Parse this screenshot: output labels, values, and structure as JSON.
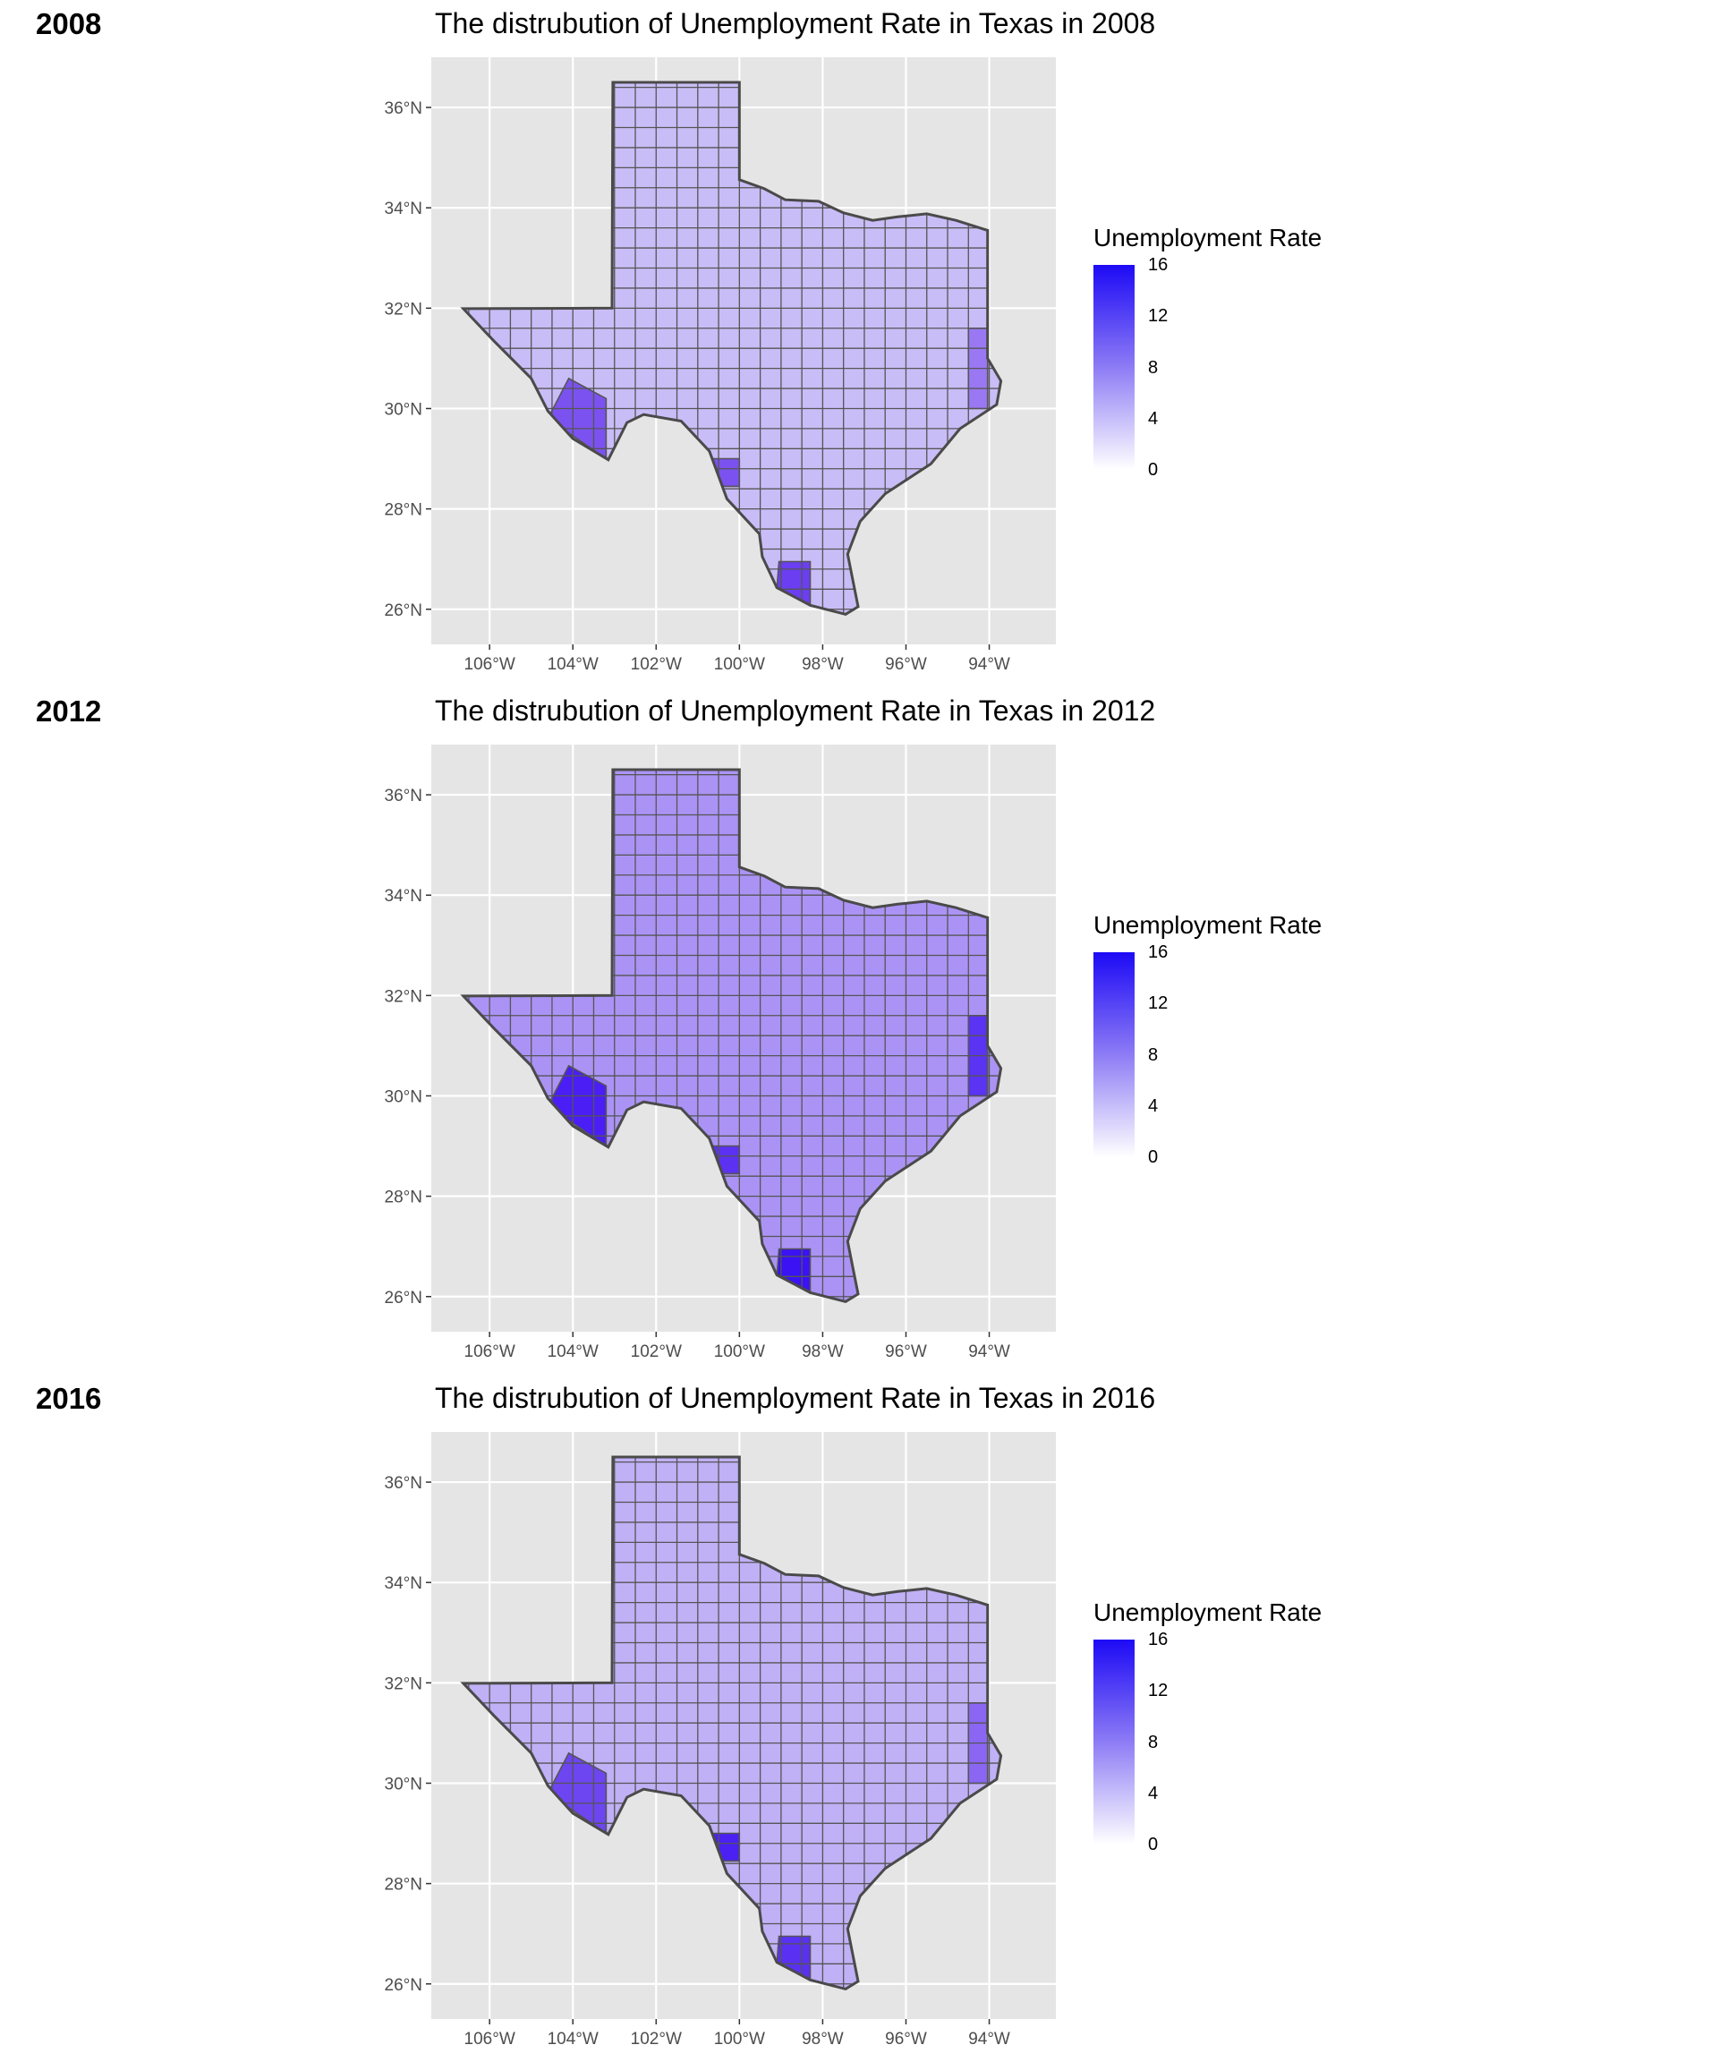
{
  "legend": {
    "title": "Unemployment Rate",
    "ticks": [
      "16",
      "12",
      "8",
      "4",
      "0"
    ],
    "low_color": "#ffffff",
    "high_color": "#1d0af5"
  },
  "axes": {
    "x_labels": [
      "106°W",
      "104°W",
      "102°W",
      "100°W",
      "98°W",
      "96°W",
      "94°W"
    ],
    "y_labels": [
      "36°N",
      "34°N",
      "32°N",
      "30°N",
      "28°N",
      "26°N"
    ],
    "background": "#e5e5e5",
    "grid_color": "#ffffff"
  },
  "maps": [
    {
      "tag": "2008",
      "title": "The distrubution of Unemployment Rate in Texas in 2008",
      "fill": "#c9bdf7",
      "highlights": [
        {
          "region": "big-bend",
          "color": "#7b52f0"
        },
        {
          "region": "maverick",
          "color": "#7b52f0"
        },
        {
          "region": "starr",
          "color": "#6b3ef1"
        },
        {
          "region": "east-border",
          "color": "#9a78f3"
        }
      ]
    },
    {
      "tag": "2012",
      "title": "The distrubution of Unemployment Rate in Texas in 2012",
      "fill": "#ab93f5",
      "highlights": [
        {
          "region": "big-bend",
          "color": "#4a1ef4"
        },
        {
          "region": "maverick",
          "color": "#5c31f2"
        },
        {
          "region": "starr",
          "color": "#3a12f3"
        },
        {
          "region": "east-border",
          "color": "#5b33f2"
        }
      ]
    },
    {
      "tag": "2016",
      "title": "The distrubution of Unemployment Rate in Texas in 2016",
      "fill": "#c0b0f6",
      "highlights": [
        {
          "region": "big-bend",
          "color": "#6d45f1"
        },
        {
          "region": "maverick",
          "color": "#4a20f3"
        },
        {
          "region": "starr",
          "color": "#5a30f2"
        },
        {
          "region": "east-border",
          "color": "#8a66f3"
        }
      ]
    }
  ]
}
